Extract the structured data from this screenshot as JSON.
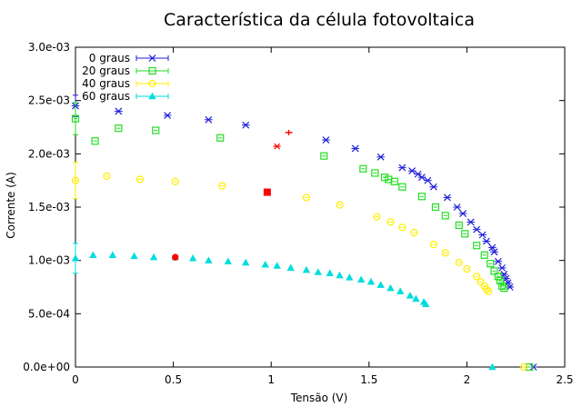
{
  "chart_data": {
    "type": "scatter",
    "title": "Característica da célula fotovoltaica",
    "xlabel": "Tensão (V)",
    "ylabel": "Corrente (A)",
    "xlim": [
      0,
      2.5
    ],
    "ylim": [
      0,
      0.003
    ],
    "xticks": [
      0,
      0.5,
      1,
      1.5,
      2,
      2.5
    ],
    "xtick_labels": [
      "0",
      "0.5",
      "1",
      "1.5",
      "2",
      "2.5"
    ],
    "yticks": [
      0,
      0.0005,
      0.001,
      0.0015,
      0.002,
      0.0025,
      0.003
    ],
    "ytick_labels": [
      "0.0e+00",
      "5.0e-04",
      "1.0e-03",
      "1.5e-03",
      "2.0e-03",
      "2.5e-03",
      "3.0e-03"
    ],
    "grid": false,
    "legend_position": "top-left",
    "series": [
      {
        "name": "0 graus",
        "color": "#1f1fdb",
        "marker": "x",
        "points": [
          [
            0.0,
            0.00245
          ],
          [
            0.22,
            0.0024
          ],
          [
            0.47,
            0.00236
          ],
          [
            0.68,
            0.00232
          ],
          [
            0.87,
            0.00227
          ],
          [
            1.28,
            0.00213
          ],
          [
            1.43,
            0.00205
          ],
          [
            1.56,
            0.00197
          ],
          [
            1.67,
            0.00187
          ],
          [
            1.72,
            0.00184
          ],
          [
            1.75,
            0.00181
          ],
          [
            1.77,
            0.00178
          ],
          [
            1.8,
            0.00175
          ],
          [
            1.83,
            0.00169
          ],
          [
            1.9,
            0.00159
          ],
          [
            1.95,
            0.0015
          ],
          [
            1.98,
            0.00144
          ],
          [
            2.02,
            0.00136
          ],
          [
            2.05,
            0.00129
          ],
          [
            2.08,
            0.00124
          ],
          [
            2.1,
            0.00118
          ],
          [
            2.13,
            0.00112
          ],
          [
            2.14,
            0.00108
          ],
          [
            2.16,
            0.00099
          ],
          [
            2.18,
            0.00093
          ],
          [
            2.19,
            0.00087
          ],
          [
            2.2,
            0.00083
          ],
          [
            2.21,
            0.00079
          ],
          [
            2.22,
            0.00075
          ],
          [
            2.34,
            0.0
          ]
        ],
        "error_x": 0.02
      },
      {
        "name": "20 graus",
        "color": "#22dd22",
        "marker": "square",
        "points": [
          [
            0.0,
            0.00233
          ],
          [
            0.1,
            0.00212
          ],
          [
            0.22,
            0.00224
          ],
          [
            0.41,
            0.00222
          ],
          [
            0.74,
            0.00215
          ],
          [
            1.27,
            0.00198
          ],
          [
            1.47,
            0.00186
          ],
          [
            1.53,
            0.00182
          ],
          [
            1.58,
            0.00178
          ],
          [
            1.6,
            0.00176
          ],
          [
            1.63,
            0.00174
          ],
          [
            1.67,
            0.00169
          ],
          [
            1.77,
            0.0016
          ],
          [
            1.84,
            0.0015
          ],
          [
            1.89,
            0.00142
          ],
          [
            1.96,
            0.00133
          ],
          [
            1.99,
            0.00125
          ],
          [
            2.05,
            0.00114
          ],
          [
            2.09,
            0.00105
          ],
          [
            2.12,
            0.00097
          ],
          [
            2.14,
            0.0009
          ],
          [
            2.16,
            0.00085
          ],
          [
            2.17,
            0.00081
          ],
          [
            2.18,
            0.00076
          ],
          [
            2.19,
            0.00074
          ],
          [
            2.32,
            0.0
          ]
        ],
        "error_x": 0.01
      },
      {
        "name": "40 graus",
        "color": "#ffee00",
        "marker": "circle",
        "points": [
          [
            0.0,
            0.00175
          ],
          [
            0.16,
            0.00179
          ],
          [
            0.33,
            0.00176
          ],
          [
            0.51,
            0.00174
          ],
          [
            0.75,
            0.0017
          ],
          [
            1.18,
            0.00159
          ],
          [
            1.35,
            0.00152
          ],
          [
            1.54,
            0.00141
          ],
          [
            1.61,
            0.00136
          ],
          [
            1.67,
            0.00131
          ],
          [
            1.73,
            0.00126
          ],
          [
            1.83,
            0.00115
          ],
          [
            1.89,
            0.00107
          ],
          [
            1.96,
            0.00098
          ],
          [
            2.0,
            0.00092
          ],
          [
            2.05,
            0.00085
          ],
          [
            2.07,
            0.0008
          ],
          [
            2.09,
            0.00076
          ],
          [
            2.1,
            0.00073
          ],
          [
            2.11,
            0.00071
          ],
          [
            2.29,
            0.0
          ]
        ],
        "error_x": 0.01
      },
      {
        "name": "60 graus",
        "color": "#00dddd",
        "marker": "triangle",
        "points": [
          [
            0.0,
            0.00102
          ],
          [
            0.09,
            0.00105
          ],
          [
            0.19,
            0.00105
          ],
          [
            0.3,
            0.00104
          ],
          [
            0.4,
            0.00103
          ],
          [
            0.51,
            0.00103
          ],
          [
            0.6,
            0.00102
          ],
          [
            0.68,
            0.001
          ],
          [
            0.78,
            0.00099
          ],
          [
            0.87,
            0.00098
          ],
          [
            0.97,
            0.00096
          ],
          [
            1.03,
            0.00095
          ],
          [
            1.1,
            0.00093
          ],
          [
            1.18,
            0.00091
          ],
          [
            1.24,
            0.00089
          ],
          [
            1.3,
            0.00088
          ],
          [
            1.35,
            0.00086
          ],
          [
            1.4,
            0.00084
          ],
          [
            1.46,
            0.00082
          ],
          [
            1.51,
            0.0008
          ],
          [
            1.56,
            0.00077
          ],
          [
            1.61,
            0.00074
          ],
          [
            1.66,
            0.00071
          ],
          [
            1.71,
            0.00067
          ],
          [
            1.74,
            0.00064
          ],
          [
            1.78,
            0.00061
          ],
          [
            1.79,
            0.00059
          ],
          [
            2.13,
            0.0
          ]
        ],
        "error_x": 0.01
      }
    ],
    "y_error_at_zero": [
      {
        "series": "0 graus",
        "x": 0.0,
        "y": 0.00245,
        "ylow": 0.00235,
        "yhigh": 0.00255
      },
      {
        "series": "20 graus",
        "x": 0.0,
        "y": 0.00233,
        "ylow": 0.00218,
        "yhigh": 0.00248
      },
      {
        "series": "40 graus",
        "x": 0.0,
        "y": 0.00175,
        "ylow": 0.00158,
        "yhigh": 0.00192
      },
      {
        "series": "60 graus",
        "x": 0.0,
        "y": 0.00102,
        "ylow": 0.00088,
        "yhigh": 0.00116
      }
    ],
    "highlighted_points": {
      "color": "#ff0000",
      "points": [
        [
          1.09,
          0.0022
        ],
        [
          1.03,
          0.00207
        ],
        [
          0.98,
          0.00164
        ],
        [
          0.51,
          0.00103
        ]
      ]
    }
  }
}
